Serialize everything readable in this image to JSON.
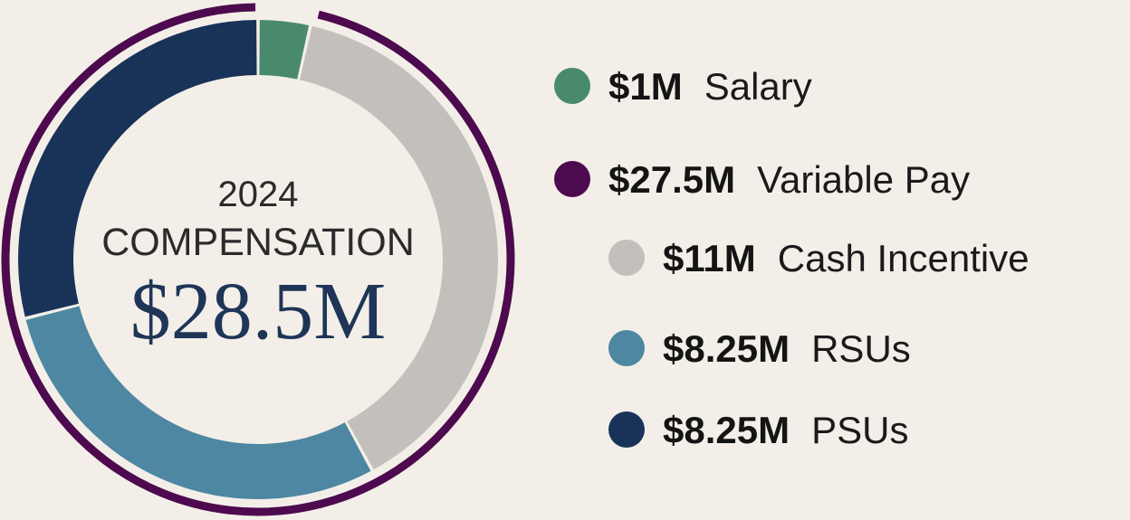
{
  "chart_data": {
    "type": "pie",
    "center": {
      "year": "2024",
      "label": "COMPENSATION",
      "total_label": "$28.5M"
    },
    "total": 28.5,
    "slices": [
      {
        "key": "salary",
        "value_label": "$1M",
        "label": "Salary",
        "value": 1,
        "color": "#4a8a6c"
      },
      {
        "key": "cash-incentive",
        "value_label": "$11M",
        "label": "Cash Incentive",
        "value": 11,
        "color": "#c3c0bc"
      },
      {
        "key": "rsus",
        "value_label": "$8.25M",
        "label": "RSUs",
        "value": 8.25,
        "color": "#4d87a1"
      },
      {
        "key": "psus",
        "value_label": "$8.25M",
        "label": "PSUs",
        "value": 8.25,
        "color": "#193358"
      }
    ],
    "group": {
      "key": "variable-pay",
      "value_label": "$27.5M",
      "label": "Variable Pay",
      "value": 27.5,
      "color": "#4e0a4e",
      "members": [
        "cash-incentive",
        "rsus",
        "psus"
      ]
    },
    "legend": [
      {
        "ref": "salary",
        "indent": false
      },
      {
        "ref": "variable-pay",
        "indent": false
      },
      {
        "ref": "cash-incentive",
        "indent": true
      },
      {
        "ref": "rsus",
        "indent": true
      },
      {
        "ref": "psus",
        "indent": true
      }
    ]
  }
}
